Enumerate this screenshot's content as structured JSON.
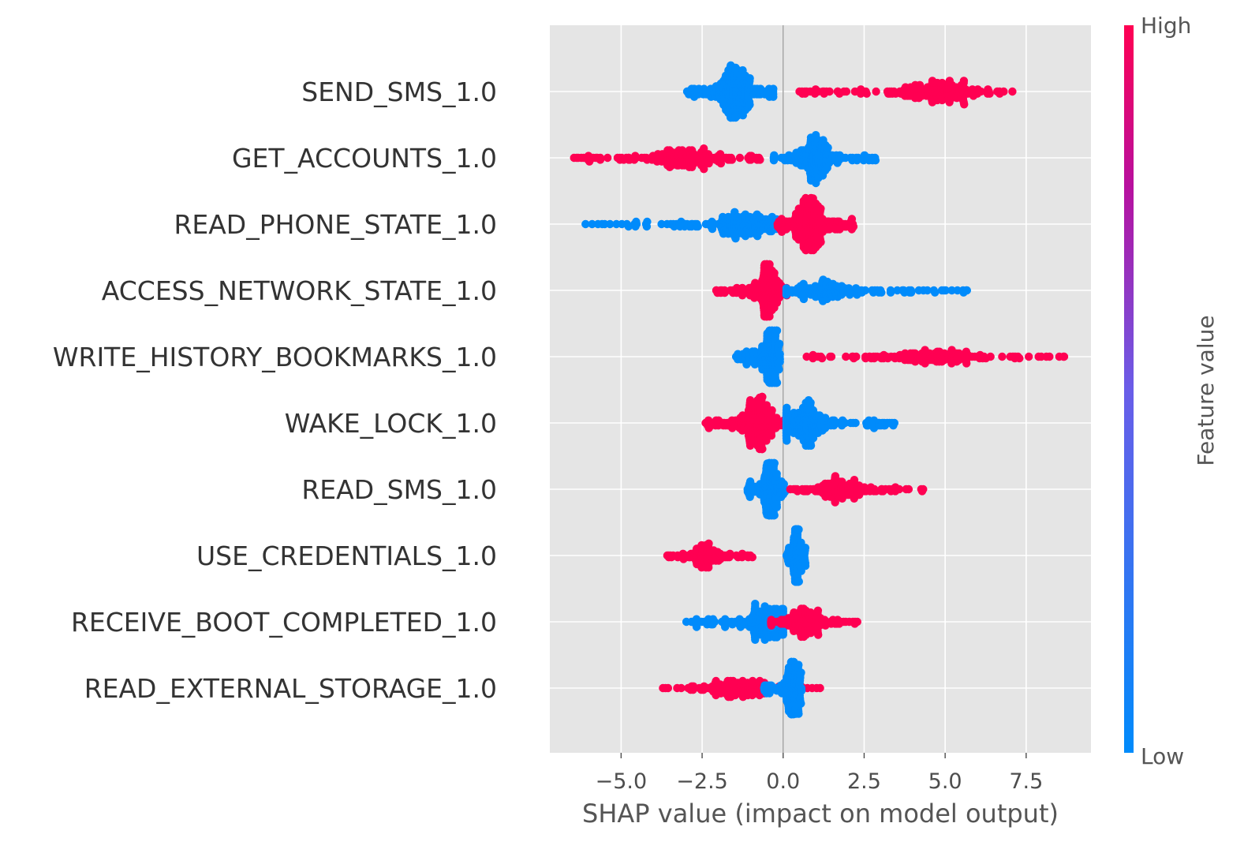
{
  "chart_data": {
    "type": "scatter",
    "subtype": "shap-beeswarm",
    "features": [
      {
        "name": "SEND_SMS_1.0",
        "groups": [
          {
            "color": "low",
            "min": -3.0,
            "max": -0.2,
            "center": -1.5,
            "peak_spread": 0.45,
            "count": 260
          },
          {
            "color": "high",
            "min": 0.5,
            "max": 7.4,
            "center": 4.8,
            "peak_spread": 0.25,
            "count": 220
          }
        ]
      },
      {
        "name": "GET_ACCOUNTS_1.0",
        "groups": [
          {
            "color": "high",
            "min": -6.5,
            "max": -0.5,
            "center": -3.0,
            "peak_spread": 0.14,
            "count": 220
          },
          {
            "color": "low",
            "min": -0.3,
            "max": 2.9,
            "center": 1.0,
            "peak_spread": 0.4,
            "count": 200
          }
        ]
      },
      {
        "name": "READ_PHONE_STATE_1.0",
        "groups": [
          {
            "color": "low",
            "min": -6.2,
            "max": -0.2,
            "center": -1.3,
            "peak_spread": 0.35,
            "count": 200
          },
          {
            "color": "high",
            "min": -0.2,
            "max": 2.2,
            "center": 0.8,
            "peak_spread": 0.42,
            "count": 260
          }
        ]
      },
      {
        "name": "ACCESS_NETWORK_STATE_1.0",
        "groups": [
          {
            "color": "high",
            "min": -2.1,
            "max": 0.2,
            "center": -0.5,
            "peak_spread": 0.38,
            "count": 200
          },
          {
            "color": "low",
            "min": 0.1,
            "max": 5.7,
            "center": 1.2,
            "peak_spread": 0.25,
            "count": 160
          }
        ]
      },
      {
        "name": "WRITE_HISTORY_BOOKMARKS_1.0",
        "groups": [
          {
            "color": "low",
            "min": -1.5,
            "max": -0.1,
            "center": -0.4,
            "peak_spread": 0.42,
            "count": 200
          },
          {
            "color": "high",
            "min": 0.5,
            "max": 8.7,
            "center": 4.5,
            "peak_spread": 0.06,
            "count": 200
          }
        ]
      },
      {
        "name": "WAKE_LOCK_1.0",
        "groups": [
          {
            "color": "high",
            "min": -2.4,
            "max": 0.2,
            "center": -0.8,
            "peak_spread": 0.4,
            "count": 230
          },
          {
            "color": "low",
            "min": 0.1,
            "max": 3.6,
            "center": 0.6,
            "peak_spread": 0.4,
            "count": 220
          }
        ]
      },
      {
        "name": "READ_SMS_1.0",
        "groups": [
          {
            "color": "low",
            "min": -1.1,
            "max": 0.1,
            "center": -0.4,
            "peak_spread": 0.42,
            "count": 180
          },
          {
            "color": "high",
            "min": 0.2,
            "max": 4.5,
            "center": 1.7,
            "peak_spread": 0.14,
            "count": 170
          }
        ]
      },
      {
        "name": "USE_CREDENTIALS_1.0",
        "groups": [
          {
            "color": "high",
            "min": -3.6,
            "max": -0.8,
            "center": -2.4,
            "peak_spread": 0.08,
            "count": 140
          },
          {
            "color": "low",
            "min": 0.1,
            "max": 0.7,
            "center": 0.4,
            "peak_spread": 0.42,
            "count": 160
          }
        ]
      },
      {
        "name": "RECEIVE_BOOT_COMPLETED_1.0",
        "groups": [
          {
            "color": "low",
            "min": -3.0,
            "max": 0.0,
            "center": -0.5,
            "peak_spread": 0.42,
            "count": 190
          },
          {
            "color": "high",
            "min": -0.4,
            "max": 2.4,
            "center": 0.6,
            "peak_spread": 0.14,
            "count": 180
          }
        ]
      },
      {
        "name": "READ_EXTERNAL_STORAGE_1.0",
        "groups": [
          {
            "color": "high",
            "min": -4.1,
            "max": 1.2,
            "center": -1.5,
            "peak_spread": 0.1,
            "count": 200
          },
          {
            "color": "low",
            "min": -0.6,
            "max": 0.6,
            "center": 0.3,
            "peak_spread": 0.42,
            "count": 170
          }
        ]
      }
    ],
    "x_ticks": [
      {
        "value": -5.0,
        "label": "−5.0"
      },
      {
        "value": -2.5,
        "label": "−2.5"
      },
      {
        "value": 0.0,
        "label": "0.0"
      },
      {
        "value": 2.5,
        "label": "2.5"
      },
      {
        "value": 5.0,
        "label": "5.0"
      },
      {
        "value": 7.5,
        "label": "7.5"
      }
    ],
    "xlim": [
      -7.2,
      9.5
    ],
    "xlabel": "SHAP value (impact on model output)",
    "ylabel": "",
    "grid": true,
    "colorbar": {
      "label": "Feature value",
      "high_label": "High",
      "low_label": "Low",
      "high_color": "#ff0052",
      "mid_color": "#a020f0",
      "low_color": "#008bfb"
    },
    "colors": {
      "plot_background": "#e5e5e5",
      "gridline": "#ffffff",
      "zero_line": "#999999"
    }
  }
}
